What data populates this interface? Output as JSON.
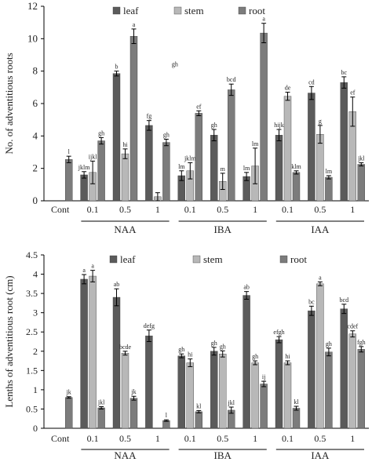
{
  "colors": {
    "leaf": "#5b5b5b",
    "stem": "#b8b8b8",
    "root": "#7c7c7c",
    "axis": "#000000",
    "error_bar": "#000000"
  },
  "chart_data": [
    {
      "type": "bar",
      "ylabel": "No. of adventitious roots",
      "ylim": [
        0,
        12
      ],
      "yticks": [
        0,
        2,
        4,
        6,
        8,
        10,
        12
      ],
      "grid": false,
      "legend_position": "top",
      "categories": [
        "Cont",
        "0.1",
        "0.5",
        "1",
        "0.1",
        "0.5",
        "1",
        "0.1",
        "0.5",
        "1"
      ],
      "groups": [
        {
          "label": "NAA",
          "start": 1,
          "end": 3
        },
        {
          "label": "IBA",
          "start": 4,
          "end": 6
        },
        {
          "label": "IAA",
          "start": 7,
          "end": 9
        }
      ],
      "series": [
        {
          "name": "leaf",
          "values": [
            null,
            1.6,
            7.85,
            4.65,
            1.55,
            4.05,
            1.5,
            4.05,
            6.65,
            7.3
          ],
          "errors": [
            0,
            0.2,
            0.15,
            0.3,
            0.3,
            0.35,
            0.25,
            0.35,
            0.4,
            0.35
          ],
          "labels": [
            "",
            "jklm",
            "b",
            "fg",
            "lm",
            "gh",
            "lm",
            "hijk",
            "cd",
            "bc"
          ]
        },
        {
          "name": "stem",
          "values": [
            null,
            1.75,
            2.9,
            0.25,
            1.85,
            1.2,
            2.15,
            6.45,
            4.1,
            5.5
          ],
          "errors": [
            0,
            0.7,
            0.3,
            0.25,
            0.5,
            0.5,
            1.1,
            0.25,
            0.55,
            0.9
          ],
          "labels": [
            "",
            "ijkl",
            "hi",
            "",
            "jklm",
            "m",
            "lm",
            "de",
            "g",
            "ef"
          ]
        },
        {
          "name": "root",
          "values": [
            2.55,
            3.7,
            10.15,
            3.6,
            5.4,
            6.85,
            10.35,
            1.75,
            1.45,
            2.25
          ],
          "errors": [
            0.2,
            0.2,
            0.45,
            0.2,
            0.15,
            0.35,
            0.6,
            0.1,
            0.1,
            0.1
          ],
          "labels": [
            "l",
            "gh",
            "a",
            "gh",
            "ef",
            "bcd",
            "a",
            "klm",
            "lm",
            "jkl"
          ]
        }
      ],
      "annotations": [
        {
          "text": "gh",
          "x": 3,
          "y": 8.3
        }
      ]
    },
    {
      "type": "bar",
      "ylabel": "Lenths of adventitious root (cm)",
      "ylim": [
        0,
        4.5
      ],
      "yticks": [
        0,
        0.5,
        1,
        1.5,
        2,
        2.5,
        3,
        3.5,
        4,
        4.5
      ],
      "grid": false,
      "legend_position": "top",
      "categories": [
        "Cont",
        "0.1",
        "0.5",
        "1",
        "0.1",
        "0.5",
        "1",
        "0.1",
        "0.5",
        "1"
      ],
      "groups": [
        {
          "label": "NAA",
          "start": 1,
          "end": 3
        },
        {
          "label": "IBA",
          "start": 4,
          "end": 6
        },
        {
          "label": "IAA",
          "start": 7,
          "end": 9
        }
      ],
      "series": [
        {
          "name": "leaf",
          "values": [
            null,
            3.87,
            3.4,
            2.4,
            1.88,
            2.0,
            3.45,
            2.3,
            3.05,
            3.1
          ],
          "errors": [
            0,
            0.12,
            0.22,
            0.15,
            0.05,
            0.1,
            0.1,
            0.08,
            0.12,
            0.12
          ],
          "labels": [
            "",
            "a",
            "ab",
            "defg",
            "gh",
            "gh",
            "ab",
            "efgh",
            "bc",
            "bcd"
          ]
        },
        {
          "name": "stem",
          "values": [
            null,
            3.95,
            1.95,
            null,
            1.7,
            1.93,
            1.7,
            1.7,
            3.75,
            2.45
          ],
          "errors": [
            0,
            0.15,
            0.05,
            0,
            0.1,
            0.08,
            0.05,
            0.05,
            0.05,
            0.08
          ],
          "labels": [
            "",
            "a",
            "bcde",
            "",
            "hi",
            "gh",
            "gh",
            "hi",
            "a",
            "cdef"
          ]
        },
        {
          "name": "root",
          "values": [
            0.8,
            0.53,
            0.78,
            0.2,
            0.43,
            0.47,
            1.15,
            0.52,
            1.98,
            2.05
          ],
          "errors": [
            0.02,
            0.03,
            0.05,
            0.02,
            0.03,
            0.08,
            0.07,
            0.05,
            0.1,
            0.07
          ],
          "labels": [
            "jk",
            "jkl",
            "jk",
            "l",
            "kl",
            "jkl",
            "ij",
            "kl",
            "gh",
            "fgh"
          ]
        }
      ],
      "annotations": []
    }
  ]
}
